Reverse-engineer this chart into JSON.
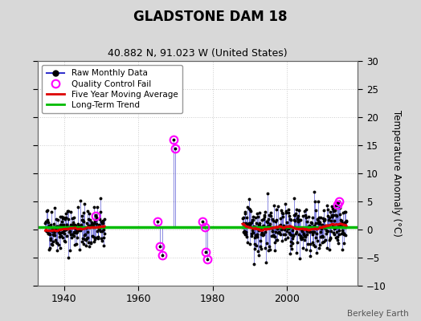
{
  "title": "GLADSTONE DAM 18",
  "subtitle": "40.882 N, 91.023 W (United States)",
  "ylabel_right": "Temperature Anomaly (°C)",
  "watermark": "Berkeley Earth",
  "ylim": [
    -10,
    30
  ],
  "xlim": [
    1933,
    2019
  ],
  "xticks": [
    1940,
    1960,
    1980,
    2000
  ],
  "yticks_right": [
    -10,
    -5,
    0,
    5,
    10,
    15,
    20,
    25,
    30
  ],
  "long_term_trend_y": 0.4,
  "period1_start": 1935,
  "period1_end": 1951,
  "period2_start": 1988,
  "period2_end": 2016,
  "bg_color": "#d8d8d8",
  "plot_bg_color": "#ffffff",
  "raw_line_color": "#3333cc",
  "raw_dot_color": "#000000",
  "ma_color": "#dd0000",
  "trend_color": "#00bb00",
  "qc_color": "#ff00ff",
  "seed": 42,
  "qc_points": [
    [
      1948.5,
      2.5
    ],
    [
      1965.2,
      1.5
    ],
    [
      1965.8,
      -3.0
    ],
    [
      1966.5,
      -4.5
    ],
    [
      1969.5,
      16.0
    ],
    [
      1970.0,
      14.5
    ],
    [
      1977.3,
      1.5
    ],
    [
      1977.8,
      0.5
    ],
    [
      1978.2,
      -4.0
    ],
    [
      1978.5,
      -5.3
    ],
    [
      2013.5,
      4.5
    ],
    [
      2014.0,
      5.0
    ]
  ]
}
